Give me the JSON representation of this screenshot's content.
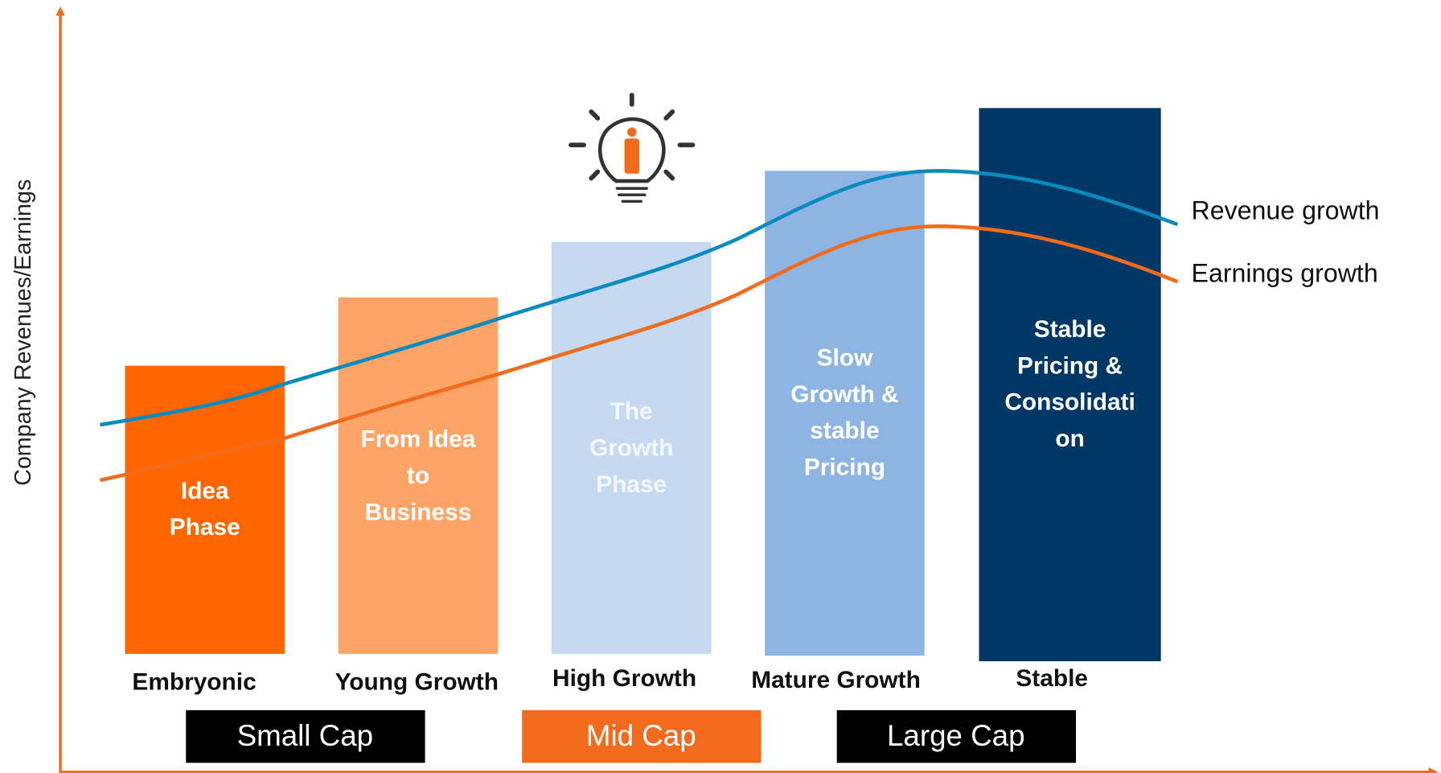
{
  "y_axis_label": "Company Revenues/Earnings",
  "stages": [
    {
      "name": "Embryonic",
      "lines": [
        "Idea",
        "Phase"
      ]
    },
    {
      "name": "Young Growth",
      "lines": [
        "From Idea",
        "to",
        "Business"
      ]
    },
    {
      "name": "High Growth",
      "lines": [
        "The",
        "Growth",
        "Phase"
      ]
    },
    {
      "name": "Mature Growth",
      "lines": [
        "Slow",
        "Growth &",
        "stable",
        "Pricing"
      ]
    },
    {
      "name": "Stable",
      "lines": [
        "Stable",
        "Pricing &",
        "Consolidati",
        "on"
      ]
    }
  ],
  "caps": [
    "Small Cap",
    "Mid Cap",
    "Large Cap"
  ],
  "curves": [
    "Revenue growth",
    "Earnings growth"
  ]
}
